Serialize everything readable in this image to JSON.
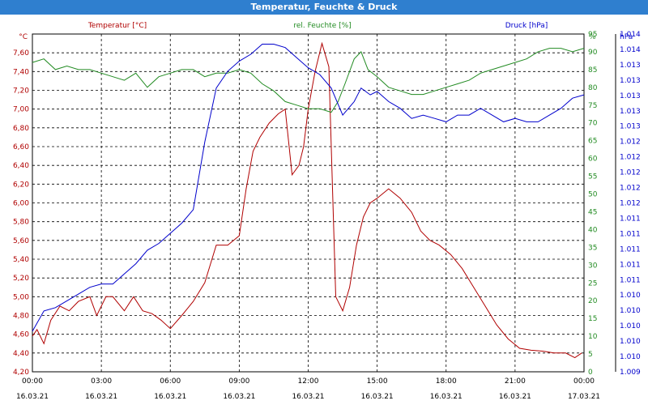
{
  "window": {
    "title": "Temperatur, Feuchte & Druck"
  },
  "colors": {
    "temperature": "#b00000",
    "humidity": "#228b22",
    "pressure": "#0000cc",
    "title_bar": "#2f7fcf",
    "grid": "#000000"
  },
  "chart_data": {
    "type": "line",
    "title": "Temperatur, Feuchte & Druck",
    "grid": true,
    "x_ticks": [
      {
        "time": "00:00",
        "date": "16.03.21"
      },
      {
        "time": "03:00",
        "date": "16.03.21"
      },
      {
        "time": "06:00",
        "date": "16.03.21"
      },
      {
        "time": "09:00",
        "date": "16.03.21"
      },
      {
        "time": "12:00",
        "date": "16.03.21"
      },
      {
        "time": "15:00",
        "date": "16.03.21"
      },
      {
        "time": "18:00",
        "date": "16.03.21"
      },
      {
        "time": "21:00",
        "date": "16.03.21"
      },
      {
        "time": "00:00",
        "date": "17.03.21"
      }
    ],
    "axes": {
      "temperature": {
        "label": "Temperatur [°C]",
        "unit": "°C",
        "min": 4.2,
        "max": 7.8,
        "ticks": [
          "4,20",
          "4,40",
          "4,60",
          "4,80",
          "5,00",
          "5,20",
          "5,40",
          "5,60",
          "5,80",
          "6,00",
          "6,20",
          "6,40",
          "6,60",
          "6,80",
          "7,00",
          "7,20",
          "7,40",
          "7,60"
        ]
      },
      "humidity": {
        "label": "rel. Feuchte [%]",
        "unit": "%",
        "min": 0,
        "max": 95,
        "ticks": [
          "0",
          "5",
          "10",
          "15",
          "20",
          "25",
          "30",
          "35",
          "40",
          "45",
          "50",
          "55",
          "60",
          "65",
          "70",
          "75",
          "80",
          "85",
          "90",
          "95"
        ]
      },
      "pressure": {
        "label": "Druck [hPa]",
        "unit": "hPa",
        "min": 1.009,
        "max": 1.014,
        "ticks": [
          "1.009",
          "1.010",
          "1.010",
          "1.010",
          "1.010",
          "1.010",
          "1.011",
          "1.011",
          "1.011",
          "1.011",
          "1.011",
          "1.012",
          "1.012",
          "1.012",
          "1.012",
          "1.012",
          "1.013",
          "1.013",
          "1.013",
          "1.013",
          "1.013",
          "1.014",
          "1.014"
        ]
      }
    },
    "series": [
      {
        "name": "Temperatur [°C]",
        "axis": "temperature",
        "x": [
          0,
          0.2,
          0.5,
          0.8,
          1.2,
          1.6,
          2,
          2.5,
          2.8,
          3.2,
          3.5,
          4,
          4.4,
          4.8,
          5.2,
          5.6,
          6,
          6.5,
          7,
          7.5,
          8,
          8.5,
          9,
          9.3,
          9.6,
          9.9,
          10.3,
          10.7,
          11,
          11.3,
          11.6,
          11.8,
          12,
          12.3,
          12.6,
          12.9,
          13.2,
          13.5,
          13.8,
          14.1,
          14.4,
          14.7,
          15,
          15.5,
          16,
          16.5,
          16.9,
          17.3,
          17.7,
          18.2,
          18.7,
          19.2,
          19.7,
          20.2,
          20.7,
          21.2,
          21.7,
          22.2,
          22.7,
          23.2,
          23.6,
          23.9
        ],
        "values": [
          4.58,
          4.65,
          4.5,
          4.75,
          4.9,
          4.85,
          4.95,
          5.0,
          4.8,
          5.0,
          5.0,
          4.85,
          5.0,
          4.85,
          4.82,
          4.75,
          4.66,
          4.8,
          4.95,
          5.15,
          5.55,
          5.55,
          5.65,
          6.15,
          6.55,
          6.7,
          6.85,
          6.95,
          7.0,
          6.3,
          6.4,
          6.6,
          7.0,
          7.4,
          7.7,
          7.45,
          5.0,
          4.85,
          5.1,
          5.55,
          5.85,
          6.0,
          6.05,
          6.15,
          6.05,
          5.9,
          5.7,
          5.6,
          5.55,
          5.45,
          5.3,
          5.1,
          4.9,
          4.7,
          4.55,
          4.45,
          4.43,
          4.42,
          4.4,
          4.4,
          4.35,
          4.4
        ]
      },
      {
        "name": "rel. Feuchte [%]",
        "axis": "humidity",
        "x": [
          0,
          0.5,
          1,
          1.5,
          2,
          2.5,
          3,
          3.5,
          4,
          4.5,
          5,
          5.5,
          6,
          6.5,
          7,
          7.5,
          8,
          8.5,
          9,
          9.5,
          10,
          10.5,
          11,
          11.5,
          12,
          12.5,
          13,
          13.3,
          13.6,
          14,
          14.3,
          14.6,
          15,
          15.5,
          16,
          16.5,
          17,
          17.5,
          18,
          18.5,
          19,
          19.5,
          20,
          20.5,
          21,
          21.5,
          22,
          22.5,
          23,
          23.5,
          24
        ],
        "values": [
          87,
          88,
          85,
          86,
          85,
          85,
          84,
          83,
          82,
          84,
          80,
          83,
          84,
          85,
          85,
          83,
          84,
          84,
          85,
          84,
          81,
          79,
          76,
          75,
          74,
          74,
          73,
          76,
          81,
          88,
          90,
          85,
          83,
          80,
          79,
          78,
          78,
          79,
          80,
          81,
          82,
          84,
          85,
          86,
          87,
          88,
          90,
          91,
          91,
          90,
          91
        ]
      },
      {
        "name": "Druck [hPa]",
        "axis": "pressure",
        "x": [
          0,
          0.5,
          1,
          1.5,
          2,
          2.5,
          3,
          3.5,
          4,
          4.5,
          5,
          5.5,
          6,
          6.5,
          7,
          7.5,
          8,
          8.5,
          9,
          9.5,
          10,
          10.5,
          11,
          11.5,
          12,
          12.5,
          13,
          13.5,
          14,
          14.3,
          14.7,
          15,
          15.5,
          16,
          16.5,
          17,
          17.5,
          18,
          18.5,
          19,
          19.5,
          20,
          20.5,
          21,
          21.5,
          22,
          22.5,
          23,
          23.5,
          24
        ],
        "values": [
          1.0096,
          1.0099,
          1.00995,
          1.01005,
          1.01015,
          1.01025,
          1.0103,
          1.0103,
          1.01045,
          1.0106,
          1.0108,
          1.0109,
          1.01105,
          1.0112,
          1.0114,
          1.0124,
          1.0132,
          1.01345,
          1.0136,
          1.0137,
          1.01385,
          1.01385,
          1.0138,
          1.01365,
          1.0135,
          1.0134,
          1.0132,
          1.0128,
          1.013,
          1.0132,
          1.0131,
          1.01315,
          1.013,
          1.0129,
          1.01275,
          1.0128,
          1.01275,
          1.0127,
          1.0128,
          1.0128,
          1.0129,
          1.0128,
          1.0127,
          1.01275,
          1.0127,
          1.0127,
          1.0128,
          1.0129,
          1.01305,
          1.0131
        ]
      }
    ]
  }
}
